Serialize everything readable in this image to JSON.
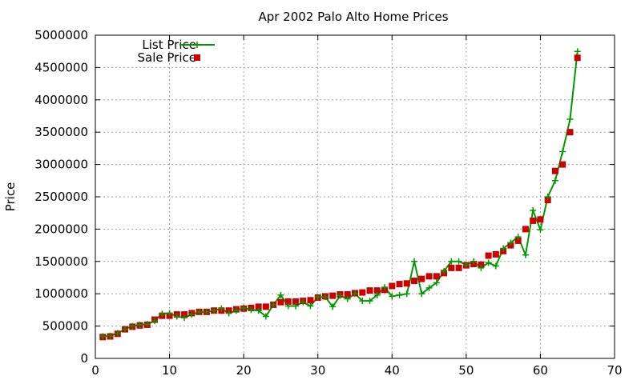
{
  "chart_data": {
    "type": "line",
    "title": "Apr 2002 Palo Alto Home Prices",
    "xlabel": "",
    "ylabel": "Price",
    "xlim": [
      0,
      70
    ],
    "ylim": [
      0,
      5000000
    ],
    "xticks": [
      "0",
      "10",
      "20",
      "30",
      "40",
      "50",
      "60",
      "70"
    ],
    "yticks": [
      "0",
      "500000",
      "1000000",
      "1500000",
      "2000000",
      "2500000",
      "3000000",
      "3500000",
      "4000000",
      "4500000",
      "5000000"
    ],
    "grid": true,
    "legend_position": "top-left",
    "series": [
      {
        "name": "List Price",
        "style": "line-with-plus-markers",
        "color": "#009900",
        "x": [
          1,
          2,
          3,
          4,
          5,
          6,
          7,
          8,
          9,
          10,
          11,
          12,
          13,
          14,
          15,
          16,
          17,
          18,
          19,
          20,
          21,
          22,
          23,
          24,
          25,
          26,
          27,
          28,
          29,
          30,
          31,
          32,
          33,
          34,
          35,
          36,
          37,
          38,
          39,
          40,
          41,
          42,
          43,
          44,
          45,
          46,
          47,
          48,
          49,
          50,
          51,
          52,
          53,
          54,
          55,
          56,
          57,
          58,
          59,
          60,
          61,
          62,
          63,
          64,
          65
        ],
        "y": [
          340000,
          350000,
          390000,
          450000,
          500000,
          520000,
          530000,
          580000,
          690000,
          700000,
          650000,
          630000,
          680000,
          720000,
          720000,
          740000,
          770000,
          700000,
          740000,
          780000,
          750000,
          740000,
          650000,
          830000,
          980000,
          810000,
          810000,
          870000,
          810000,
          950000,
          950000,
          800000,
          970000,
          920000,
          1000000,
          890000,
          890000,
          980000,
          1100000,
          960000,
          980000,
          1000000,
          1500000,
          1000000,
          1090000,
          1170000,
          1350000,
          1500000,
          1500000,
          1450000,
          1500000,
          1400000,
          1480000,
          1430000,
          1700000,
          1790000,
          1880000,
          1600000,
          2290000,
          1990000,
          2500000,
          2750000,
          3200000,
          3700000,
          4750000
        ]
      },
      {
        "name": "Sale Price",
        "style": "square-markers",
        "color": "#cc0000",
        "x": [
          1,
          2,
          3,
          4,
          5,
          6,
          7,
          8,
          9,
          10,
          11,
          12,
          13,
          14,
          15,
          16,
          17,
          18,
          19,
          20,
          21,
          22,
          23,
          24,
          25,
          26,
          27,
          28,
          29,
          30,
          31,
          32,
          33,
          34,
          35,
          36,
          37,
          38,
          39,
          40,
          41,
          42,
          43,
          44,
          45,
          46,
          47,
          48,
          49,
          50,
          51,
          52,
          53,
          54,
          55,
          56,
          57,
          58,
          59,
          60,
          61,
          62,
          63,
          64,
          65
        ],
        "y": [
          330000,
          340000,
          380000,
          450000,
          490000,
          510000,
          520000,
          600000,
          660000,
          660000,
          680000,
          680000,
          700000,
          720000,
          720000,
          740000,
          740000,
          740000,
          760000,
          770000,
          780000,
          800000,
          800000,
          830000,
          870000,
          880000,
          880000,
          890000,
          900000,
          940000,
          960000,
          970000,
          990000,
          990000,
          1010000,
          1020000,
          1050000,
          1050000,
          1060000,
          1120000,
          1150000,
          1160000,
          1200000,
          1230000,
          1270000,
          1270000,
          1320000,
          1400000,
          1400000,
          1440000,
          1460000,
          1450000,
          1590000,
          1610000,
          1660000,
          1750000,
          1820000,
          2000000,
          2130000,
          2150000,
          2450000,
          2900000,
          3000000,
          3500000,
          4650000
        ]
      }
    ]
  }
}
